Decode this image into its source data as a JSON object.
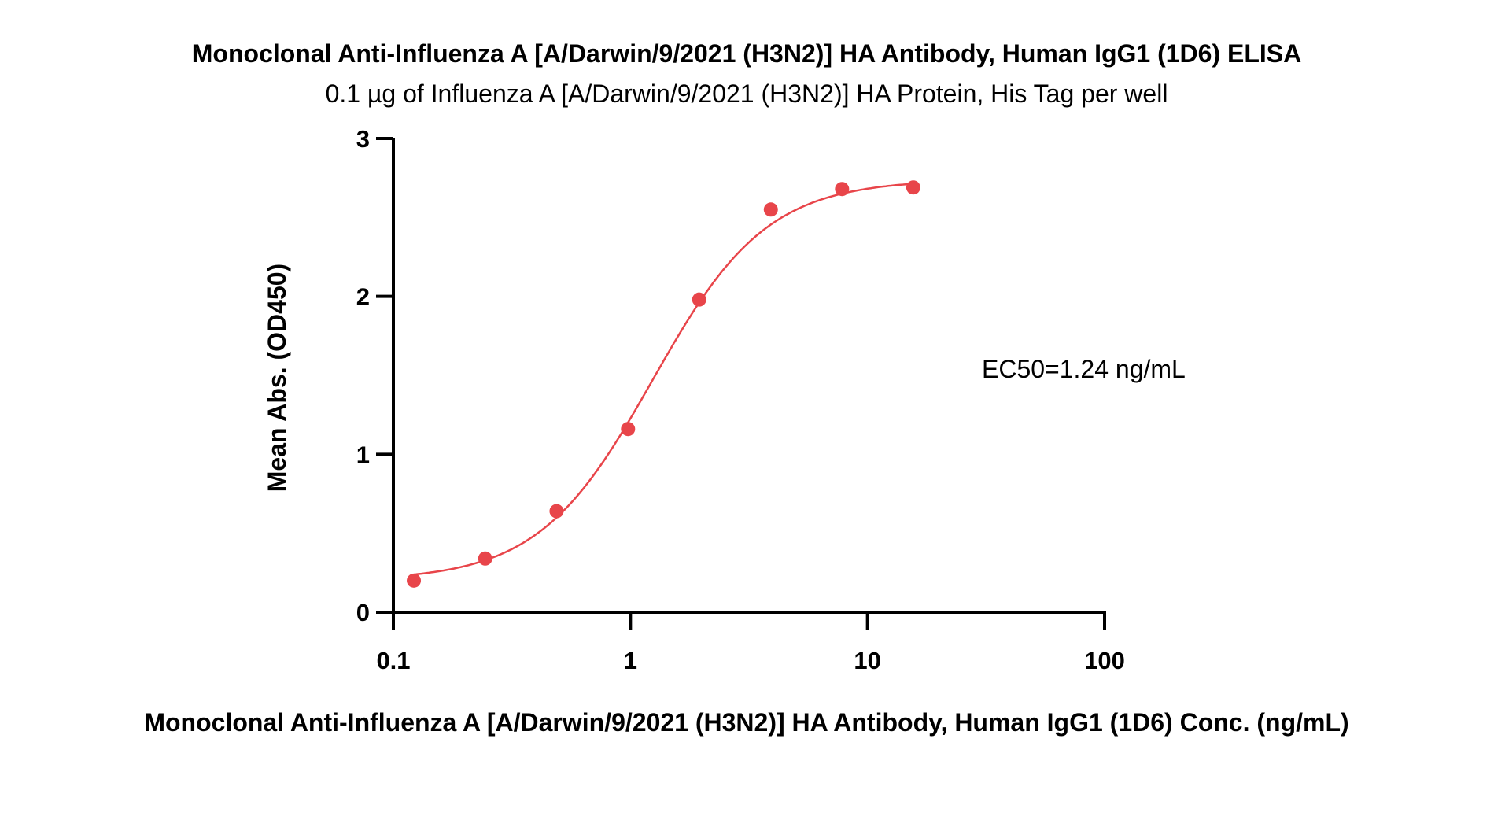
{
  "chart_data": {
    "type": "scatter",
    "title": "Monoclonal Anti-Influenza A [A/Darwin/9/2021 (H3N2)] HA Antibody, Human IgG1 (1D6) ELISA",
    "subtitle": "0.1 µg of Influenza A [A/Darwin/9/2021 (H3N2)] HA Protein, His Tag per well",
    "xlabel": "Monoclonal Anti-Influenza A [A/Darwin/9/2021 (H3N2)] HA Antibody, Human IgG1 (1D6) Conc. (ng/mL)",
    "ylabel": "Mean Abs. (OD450)",
    "x_scale": "log",
    "xlim": [
      0.1,
      100
    ],
    "ylim": [
      0,
      3
    ],
    "x_ticks": [
      0.1,
      1,
      10,
      100
    ],
    "x_tick_labels": [
      "0.1",
      "1",
      "10",
      "100"
    ],
    "y_ticks": [
      0,
      1,
      2,
      3
    ],
    "y_tick_labels": [
      "0",
      "1",
      "2",
      "3"
    ],
    "grid": false,
    "legend": "none",
    "annotation": "EC50=1.24 ng/mL",
    "series": [
      {
        "color": "#e8454a",
        "x": [
          0.122,
          0.244,
          0.488,
          0.977,
          1.95,
          3.91,
          7.81,
          15.6
        ],
        "y": [
          0.2,
          0.34,
          0.64,
          1.16,
          1.98,
          2.55,
          2.68,
          2.69
        ],
        "fit": {
          "model": "4PL",
          "bottom": 0.2,
          "top": 2.74,
          "ec50": 1.24,
          "hill": 1.8
        }
      }
    ]
  }
}
